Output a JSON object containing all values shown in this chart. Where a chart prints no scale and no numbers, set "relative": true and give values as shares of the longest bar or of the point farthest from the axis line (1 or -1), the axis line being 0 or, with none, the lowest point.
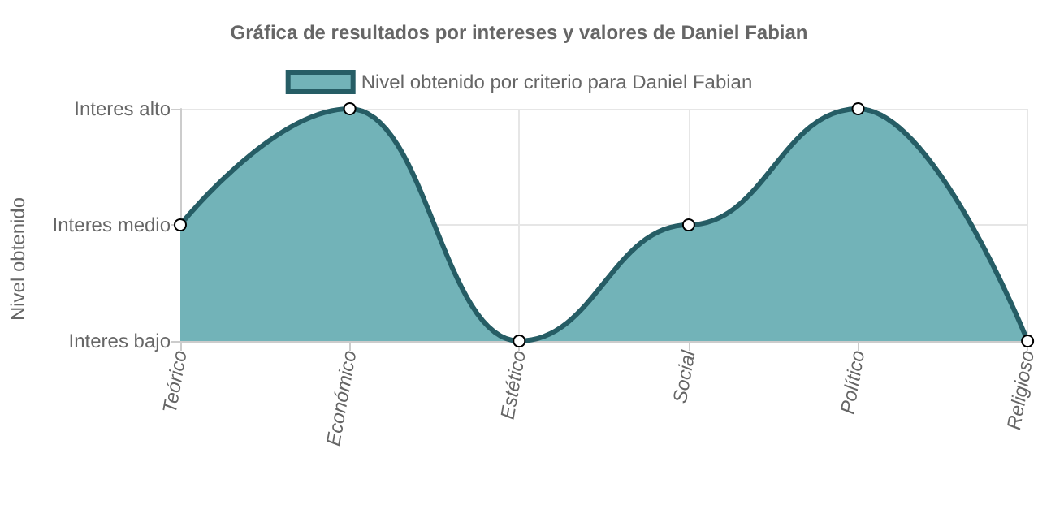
{
  "chart_data": {
    "type": "area",
    "title": "Gráfica de resultados por intereses y valores de Daniel Fabian",
    "categories": [
      "Teórico",
      "Económico",
      "Estético",
      "Social",
      "Político",
      "Religioso"
    ],
    "series": [
      {
        "name": "Nivel obtenido por criterio para Daniel Fabian",
        "color": "#72b3b8",
        "values": [
          0.5,
          1,
          0,
          0.5,
          1,
          0
        ]
      }
    ],
    "relative": true,
    "annotations": [
      "Nivel obtenido",
      "Interes bajo",
      "Interes medio",
      "Interes alto"
    ],
    "grid": true,
    "legend": "top",
    "marker": "circle"
  }
}
